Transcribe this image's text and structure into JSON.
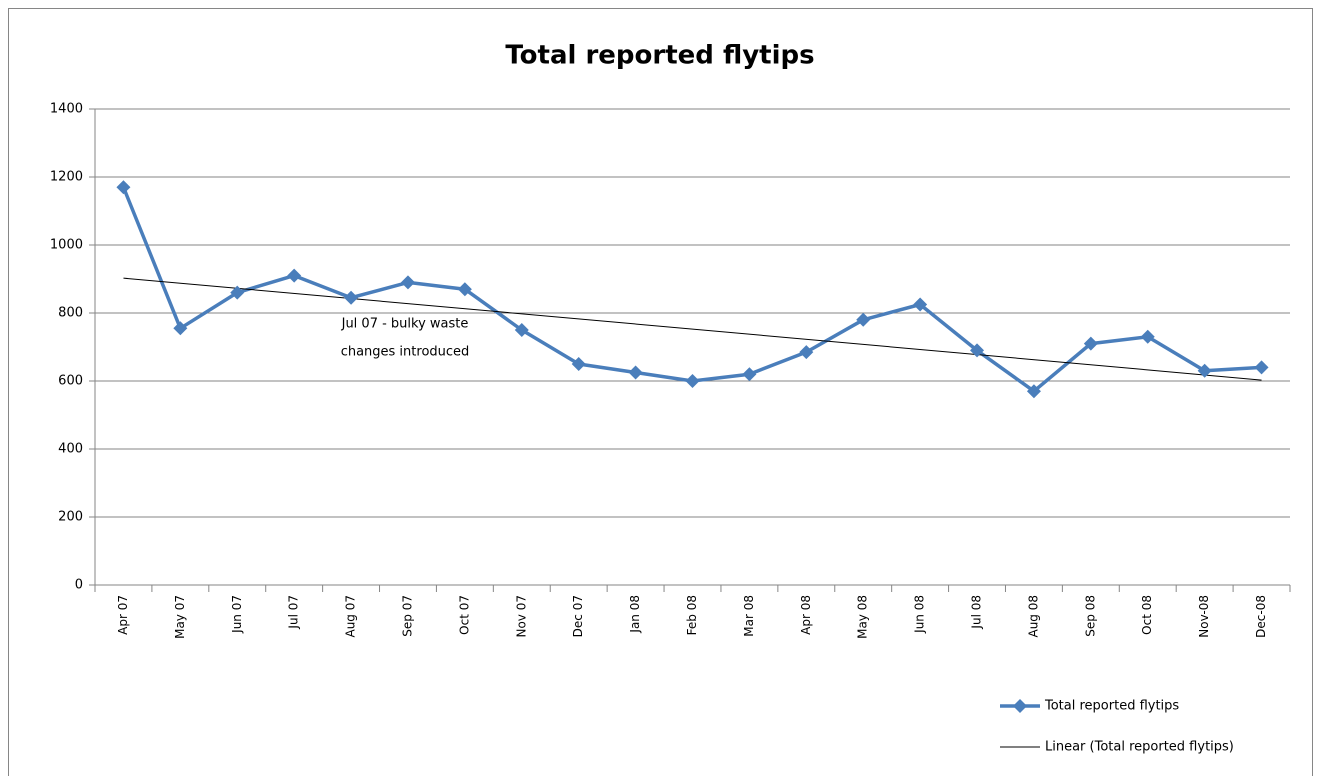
{
  "chart_data": {
    "type": "line",
    "title": "Total reported flytips",
    "categories": [
      "Apr 07",
      "May 07",
      "Jun 07",
      "Jul 07",
      "Aug 07",
      "Sep 07",
      "Oct 07",
      "Nov 07",
      "Dec 07",
      "Jan 08",
      "Feb 08",
      "Mar 08",
      "Apr 08",
      "May 08",
      "Jun 08",
      "Jul 08",
      "Aug 08",
      "Sep 08",
      "Oct 08",
      "Nov-08",
      "Dec-08"
    ],
    "series": [
      {
        "name": "Total reported flytips",
        "color": "#4a7ebb",
        "values": [
          1170,
          755,
          860,
          910,
          845,
          890,
          870,
          750,
          650,
          625,
          600,
          620,
          685,
          780,
          825,
          690,
          570,
          710,
          730,
          630,
          640
        ]
      }
    ],
    "trendline": {
      "name": "Linear (Total reported flytips)",
      "color": "#000000"
    },
    "annotation": [
      "Jul 07 - bulky waste",
      "changes introduced"
    ],
    "ylim": [
      0,
      1400
    ],
    "yticks": [
      0,
      200,
      400,
      600,
      800,
      1000,
      1200,
      1400
    ],
    "grid": true,
    "legend": "bottom-right"
  }
}
